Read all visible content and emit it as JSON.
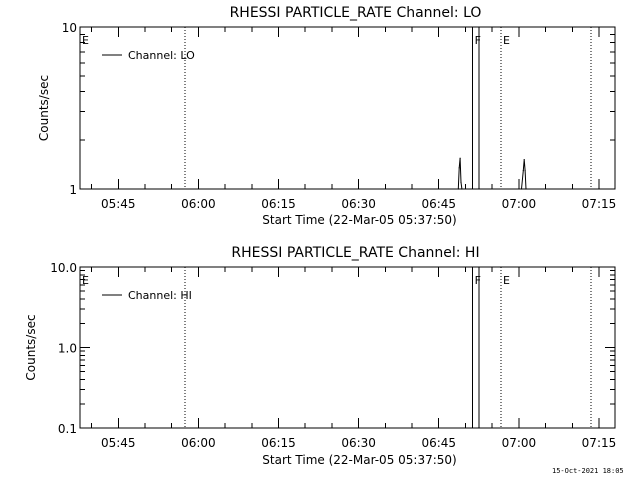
{
  "footer": {
    "date": "15-Oct-2021 18:05"
  },
  "chart_data": [
    {
      "type": "line",
      "title": "RHESSI PARTICLE_RATE Channel: LO",
      "xlabel": "Start Time (22-Mar-05 05:37:50)",
      "ylabel": "Counts/sec",
      "y_scale": "log",
      "ylim": [
        1,
        10
      ],
      "y_ticks": [
        "1",
        "10"
      ],
      "xlim": [
        "05:37:50",
        "07:18:00"
      ],
      "x_ticks": [
        "05:45",
        "06:00",
        "06:15",
        "06:30",
        "06:45",
        "07:00",
        "07:15"
      ],
      "grid": false,
      "legend": {
        "position": "top-left",
        "entries": [
          "Channel: LO"
        ]
      },
      "vertical_markers": [
        {
          "time": "05:37:50",
          "label": "E",
          "style": "none"
        },
        {
          "time": "05:57:30",
          "label": "",
          "style": "dotted"
        },
        {
          "time": "06:51:20",
          "label": "F",
          "style": "solid"
        },
        {
          "time": "06:52:30",
          "label": "",
          "style": "solid"
        },
        {
          "time": "06:56:40",
          "label": "E",
          "style": "dotted"
        },
        {
          "time": "07:13:30",
          "label": "",
          "style": "dotted"
        }
      ],
      "series": [
        {
          "name": "Channel: LO",
          "points": [
            [
              "06:48:40",
              1
            ],
            [
              "06:48:50",
              1.35
            ],
            [
              "06:49:00",
              1.55
            ],
            [
              "06:49:10",
              1.1
            ],
            [
              "06:49:20",
              1
            ],
            [
              "07:00:30",
              1
            ],
            [
              "07:00:50",
              1.3
            ],
            [
              "07:01:00",
              1.52
            ],
            [
              "07:01:10",
              1.3
            ],
            [
              "07:01:20",
              1
            ]
          ]
        }
      ]
    },
    {
      "type": "line",
      "title": "RHESSI PARTICLE_RATE Channel: HI",
      "xlabel": "Start Time (22-Mar-05 05:37:50)",
      "ylabel": "Counts/sec",
      "y_scale": "log",
      "ylim": [
        0.1,
        10
      ],
      "y_ticks": [
        "0.1",
        "1.0",
        "10.0"
      ],
      "xlim": [
        "05:37:50",
        "07:18:00"
      ],
      "x_ticks": [
        "05:45",
        "06:00",
        "06:15",
        "06:30",
        "06:45",
        "07:00",
        "07:15"
      ],
      "grid": false,
      "legend": {
        "position": "top-left",
        "entries": [
          "Channel: HI"
        ]
      },
      "vertical_markers": [
        {
          "time": "05:37:50",
          "label": "E",
          "style": "none"
        },
        {
          "time": "05:57:30",
          "label": "",
          "style": "dotted"
        },
        {
          "time": "06:51:20",
          "label": "F",
          "style": "solid"
        },
        {
          "time": "06:52:30",
          "label": "",
          "style": "solid"
        },
        {
          "time": "06:56:40",
          "label": "E",
          "style": "dotted"
        },
        {
          "time": "07:13:30",
          "label": "",
          "style": "dotted"
        }
      ],
      "series": [
        {
          "name": "Channel: HI",
          "points": []
        }
      ]
    }
  ]
}
